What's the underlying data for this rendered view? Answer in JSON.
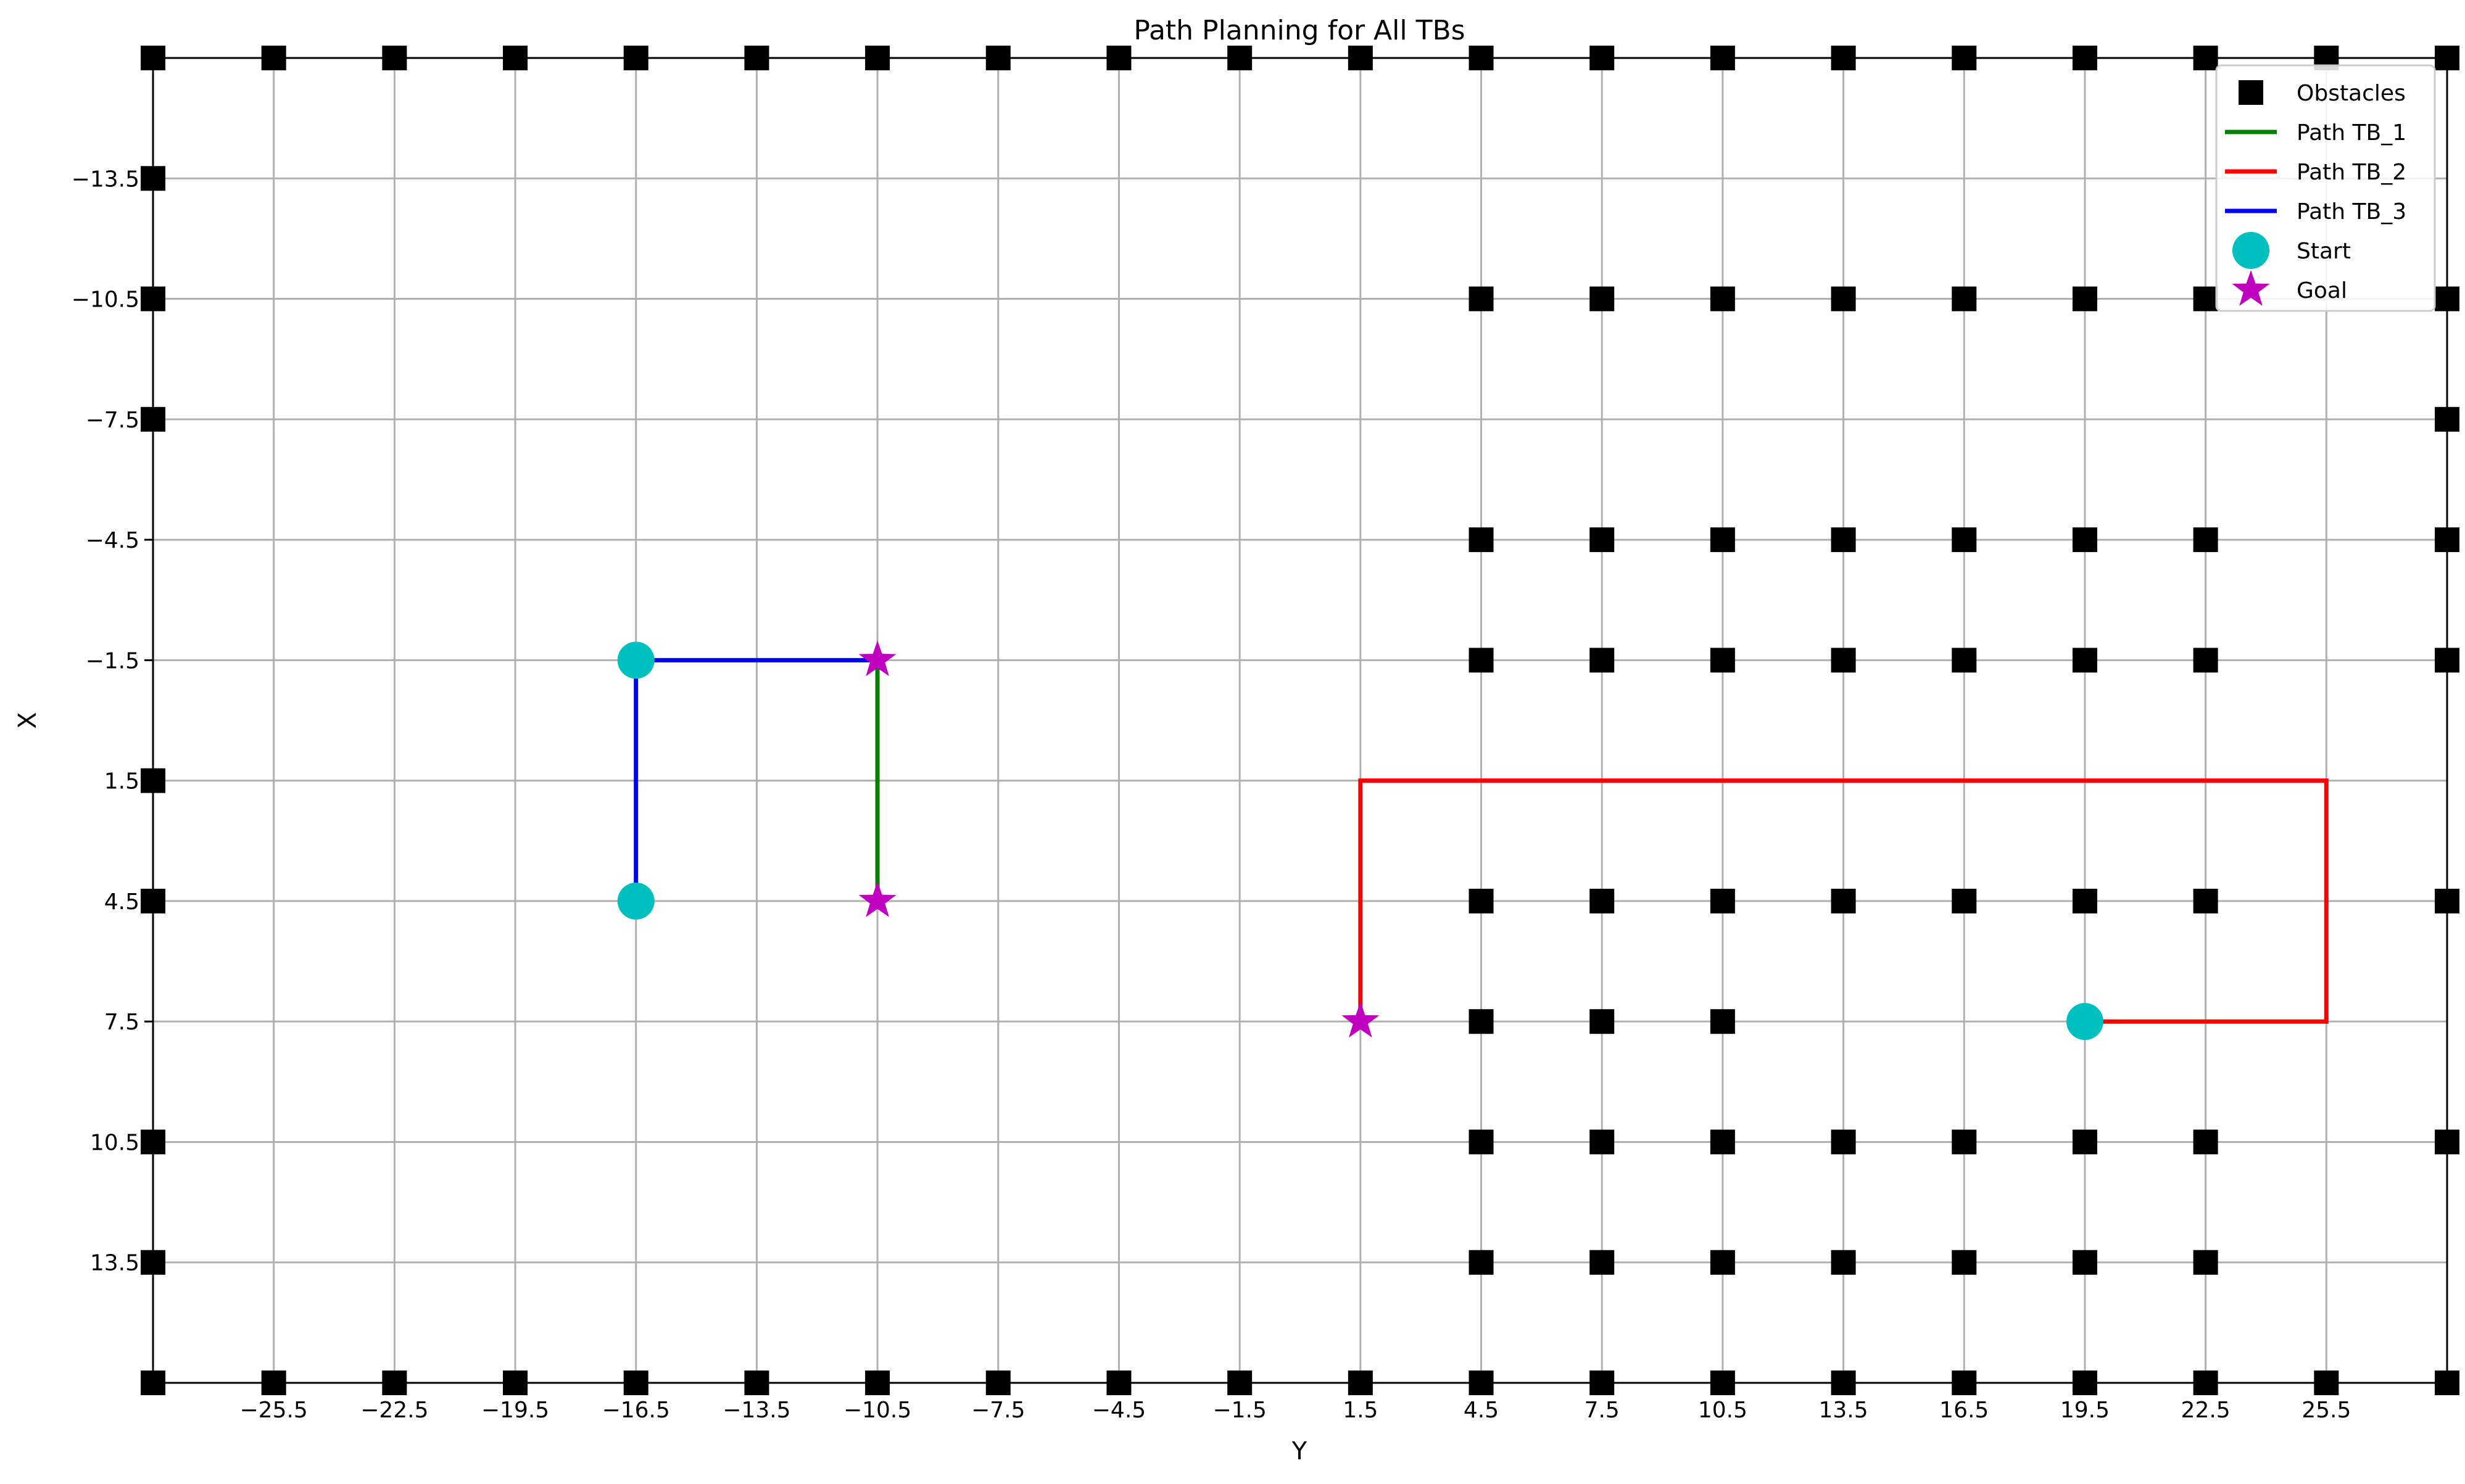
{
  "chart_data": {
    "type": "scatter",
    "title": "Path Planning for All TBs",
    "xlabel": "Y",
    "ylabel": "X",
    "xlim": [
      -28.5,
      28.5
    ],
    "ylim": [
      -16.5,
      16.5
    ],
    "y_inverted": true,
    "grid": true,
    "legend_position": "upper right",
    "x_ticks": [
      -25.5,
      -22.5,
      -19.5,
      -16.5,
      -13.5,
      -10.5,
      -7.5,
      -4.5,
      -1.5,
      1.5,
      4.5,
      7.5,
      10.5,
      13.5,
      16.5,
      19.5,
      22.5,
      25.5
    ],
    "x_tick_labels": [
      "−25.5",
      "−22.5",
      "−19.5",
      "−16.5",
      "−13.5",
      "−10.5",
      "−7.5",
      "−4.5",
      "−1.5",
      "1.5",
      "4.5",
      "7.5",
      "10.5",
      "13.5",
      "16.5",
      "19.5",
      "22.5",
      "25.5"
    ],
    "y_ticks": [
      -13.5,
      -10.5,
      -7.5,
      -4.5,
      -1.5,
      1.5,
      4.5,
      7.5,
      10.5,
      13.5
    ],
    "y_tick_labels": [
      "−13.5",
      "−10.5",
      "−7.5",
      "−4.5",
      "−1.5",
      "1.5",
      "4.5",
      "7.5",
      "10.5",
      "13.5"
    ],
    "legend": [
      {
        "label": "Obstacles",
        "kind": "square",
        "color": "#000000"
      },
      {
        "label": "Path TB_1",
        "kind": "line",
        "color": "#008000"
      },
      {
        "label": "Path TB_2",
        "kind": "line",
        "color": "#ff0000"
      },
      {
        "label": "Path TB_3",
        "kind": "line",
        "color": "#0000ff"
      },
      {
        "label": "Start",
        "kind": "circle",
        "color": "#00bfbf"
      },
      {
        "label": "Goal",
        "kind": "star",
        "color": "#bf00bf"
      }
    ],
    "obstacles": {
      "border_top_bottom_x": [
        -28.5,
        -25.5,
        -22.5,
        -19.5,
        -16.5,
        -13.5,
        -10.5,
        -7.5,
        -4.5,
        -1.5,
        1.5,
        4.5,
        7.5,
        10.5,
        13.5,
        16.5,
        19.5,
        22.5,
        25.5,
        28.5
      ],
      "border_top_bottom_y": [
        -16.5,
        16.5
      ],
      "border_left_y": [
        -16.5,
        -13.5,
        -10.5,
        -7.5,
        1.5,
        4.5,
        10.5,
        13.5,
        16.5
      ],
      "border_right_y": [
        -16.5,
        -10.5,
        -7.5,
        -4.5,
        -1.5,
        4.5,
        10.5,
        16.5
      ],
      "interior_rows": [
        {
          "y": -10.5,
          "x": [
            4.5,
            7.5,
            10.5,
            13.5,
            16.5,
            19.5,
            22.5
          ]
        },
        {
          "y": -4.5,
          "x": [
            4.5,
            7.5,
            10.5,
            13.5,
            16.5,
            19.5,
            22.5
          ]
        },
        {
          "y": -1.5,
          "x": [
            4.5,
            7.5,
            10.5,
            13.5,
            16.5,
            19.5,
            22.5
          ]
        },
        {
          "y": 4.5,
          "x": [
            4.5,
            7.5,
            10.5,
            13.5,
            16.5,
            19.5,
            22.5
          ]
        },
        {
          "y": 7.5,
          "x": [
            4.5,
            7.5,
            10.5
          ]
        },
        {
          "y": 10.5,
          "x": [
            4.5,
            7.5,
            10.5,
            13.5,
            16.5,
            19.5,
            22.5
          ]
        },
        {
          "y": 13.5,
          "x": [
            4.5,
            7.5,
            10.5,
            13.5,
            16.5,
            19.5,
            22.5
          ]
        }
      ]
    },
    "series": [
      {
        "name": "Path TB_1",
        "color": "#008000",
        "x": [
          -10.5,
          -10.5
        ],
        "y": [
          4.5,
          -1.5
        ]
      },
      {
        "name": "Path TB_2",
        "color": "#ff0000",
        "x": [
          19.5,
          25.5,
          25.5,
          1.5,
          1.5
        ],
        "y": [
          7.5,
          7.5,
          1.5,
          1.5,
          7.5
        ]
      },
      {
        "name": "Path TB_3",
        "color": "#0000ff",
        "x": [
          -16.5,
          -16.5,
          -10.5
        ],
        "y": [
          4.5,
          -1.5,
          -1.5
        ]
      }
    ],
    "starts": [
      {
        "x": -16.5,
        "y": -1.5
      },
      {
        "x": -16.5,
        "y": 4.5
      },
      {
        "x": 19.5,
        "y": 7.5
      }
    ],
    "goals": [
      {
        "x": -10.5,
        "y": -1.5
      },
      {
        "x": -10.5,
        "y": 4.5
      },
      {
        "x": 1.5,
        "y": 7.5
      }
    ]
  }
}
